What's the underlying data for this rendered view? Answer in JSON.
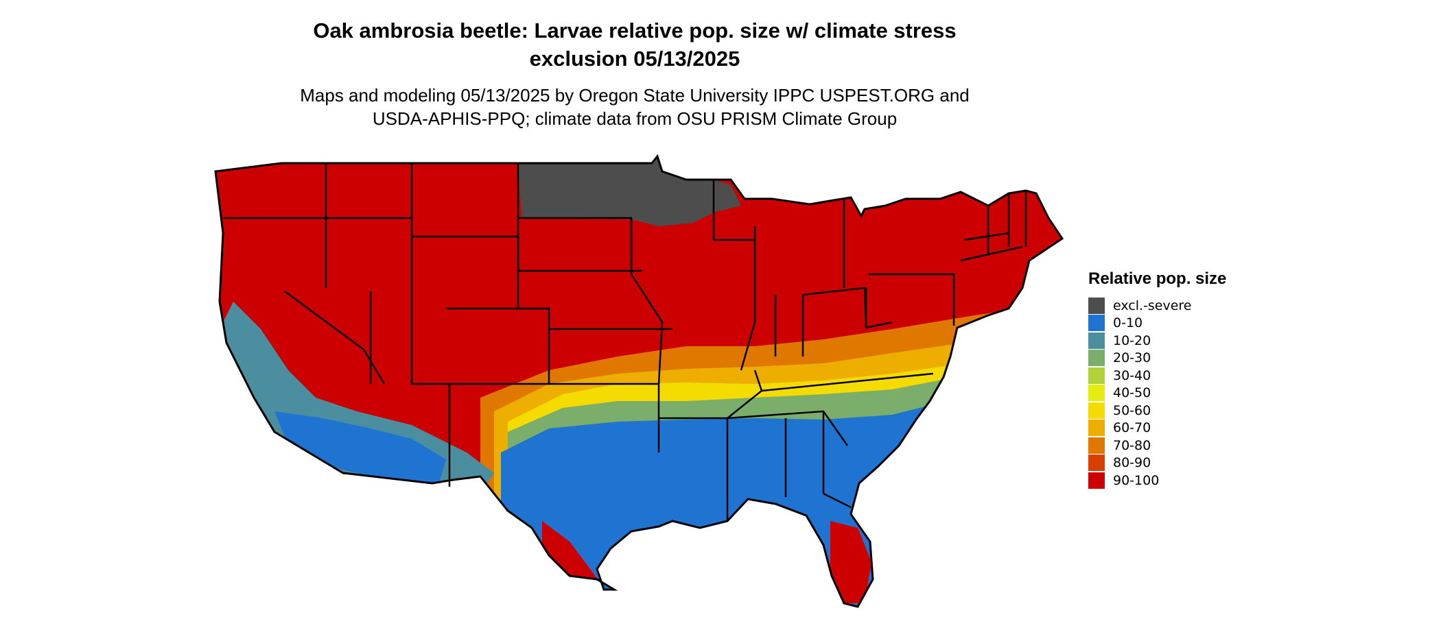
{
  "title": {
    "line1": "Oak ambrosia beetle: Larvae relative pop. size w/ climate stress",
    "line2": "exclusion 05/13/2025"
  },
  "subtitle": {
    "line1": "Maps and modeling 05/13/2025 by Oregon State University IPPC USPEST.ORG and",
    "line2": "USDA-APHIS-PPQ; climate data from OSU PRISM Climate Group"
  },
  "legend": {
    "title": "Relative pop. size",
    "items": [
      {
        "label": "excl.-severe",
        "color": "#4d4d4d"
      },
      {
        "label": "0-10",
        "color": "#1e74d0"
      },
      {
        "label": "10-20",
        "color": "#4a8ea0"
      },
      {
        "label": "20-30",
        "color": "#7aae6a"
      },
      {
        "label": "30-40",
        "color": "#b2d23a"
      },
      {
        "label": "40-50",
        "color": "#e6ec10"
      },
      {
        "label": "50-60",
        "color": "#f5dc00"
      },
      {
        "label": "60-70",
        "color": "#eeae00"
      },
      {
        "label": "70-80",
        "color": "#e07800"
      },
      {
        "label": "80-90",
        "color": "#d84000"
      },
      {
        "label": "90-100",
        "color": "#cc0000"
      }
    ]
  }
}
